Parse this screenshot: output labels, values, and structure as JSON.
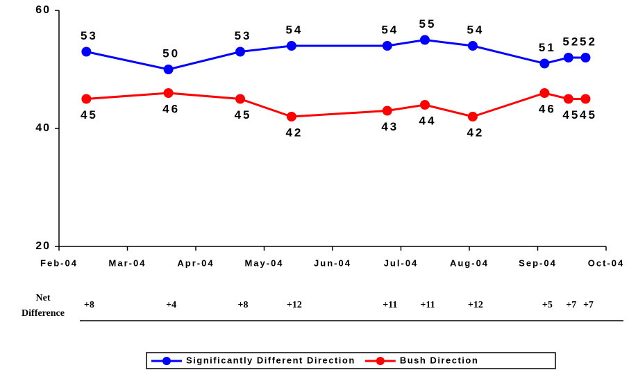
{
  "chart_data": {
    "type": "line",
    "x": [
      0.4,
      1.6,
      2.65,
      3.4,
      4.8,
      5.35,
      6.05,
      7.1,
      7.45,
      7.7
    ],
    "series": [
      {
        "name": "Significantly Different Direction",
        "color": "#0000ff",
        "values": [
          53,
          50,
          53,
          54,
          54,
          55,
          54,
          51,
          52,
          52
        ]
      },
      {
        "name": "Bush Direction",
        "color": "#ff0000",
        "values": [
          45,
          46,
          45,
          42,
          43,
          44,
          42,
          46,
          45,
          45
        ]
      }
    ],
    "xlim": [
      0,
      8
    ],
    "xticks": [
      {
        "value": 0,
        "label": "Feb-04"
      },
      {
        "value": 1,
        "label": "Mar-04"
      },
      {
        "value": 2,
        "label": "Apr-04"
      },
      {
        "value": 3,
        "label": "May-04"
      },
      {
        "value": 4,
        "label": "Jun-04"
      },
      {
        "value": 5,
        "label": "Jul-04"
      },
      {
        "value": 6,
        "label": "Aug-04"
      },
      {
        "value": 7,
        "label": "Sep-04"
      },
      {
        "value": 8,
        "label": "Oct-04"
      }
    ],
    "ylim": [
      20,
      60
    ],
    "yticks": [
      20,
      40,
      60
    ],
    "grid": false,
    "net_difference": {
      "label": [
        "Net",
        "Difference"
      ],
      "values": [
        "+8",
        "+4",
        "+8",
        "+12",
        "+11",
        "+11",
        "+12",
        "+5",
        "+7",
        "+7"
      ]
    },
    "legend": "bottom"
  }
}
